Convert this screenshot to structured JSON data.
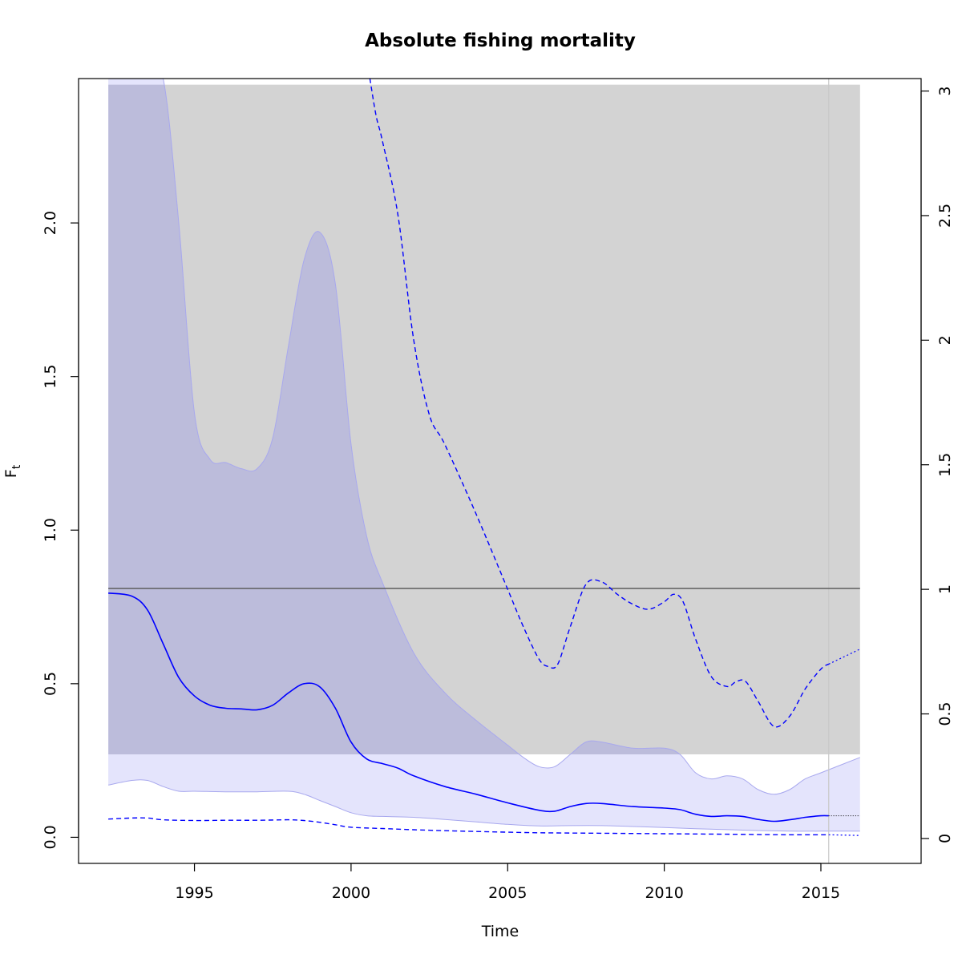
{
  "chart_data": {
    "type": "line",
    "title": "Absolute fishing mortality",
    "xlabel": "Time",
    "ylabel": "F",
    "ylabel_subscript": "t",
    "xlim": [
      1991.3,
      2018.2
    ],
    "ylim": [
      -0.085,
      2.47
    ],
    "ylim_right": [
      -0.1,
      3.05
    ],
    "x_ticks": [
      1995,
      2000,
      2005,
      2010,
      2015
    ],
    "y_ticks": [
      0.0,
      0.5,
      1.0,
      1.5,
      2.0
    ],
    "y_ticks_right": [
      0,
      0.5,
      1,
      1.5,
      2,
      2.5,
      3
    ],
    "grid": false,
    "colors": {
      "estimate": "#0000ff",
      "ci_fill": "#e4e4fc",
      "ci_border": "#a8a8ee",
      "ci_overlap": "#bcbcdb",
      "ref_band": "#d3d3d3",
      "ref_line": "#555555",
      "vline": "#c8c8c8"
    },
    "reference": {
      "fmsy": 0.81,
      "band": [
        0.27,
        2.45
      ],
      "x_range": [
        1992.25,
        2016.25
      ]
    },
    "last_observation": 2015.25,
    "series": [
      {
        "role": "ci_upper",
        "axis": "left",
        "x": [
          1992.25,
          1993.0,
          1993.5,
          1994.0,
          1994.5,
          1995.0,
          1995.5,
          1996.0,
          1996.5,
          1997.0,
          1997.5,
          1998.0,
          1998.5,
          1999.0,
          1999.5,
          2000.0,
          2000.5,
          2001.0,
          2002.0,
          2003.0,
          2004.0,
          2005.0,
          2005.5,
          2006.0,
          2006.5,
          2007.0,
          2007.5,
          2008.0,
          2009.0,
          2010.0,
          2010.5,
          2011.0,
          2011.5,
          2012.0,
          2012.5,
          2013.0,
          2013.5,
          2014.0,
          2014.5,
          2015.0,
          2016.25
        ],
        "y": [
          2.47,
          2.47,
          2.47,
          2.47,
          2.0,
          1.38,
          1.23,
          1.22,
          1.2,
          1.2,
          1.3,
          1.6,
          1.88,
          1.97,
          1.8,
          1.28,
          0.98,
          0.83,
          0.6,
          0.47,
          0.38,
          0.3,
          0.26,
          0.23,
          0.23,
          0.27,
          0.31,
          0.31,
          0.29,
          0.29,
          0.27,
          0.21,
          0.19,
          0.2,
          0.19,
          0.155,
          0.14,
          0.155,
          0.19,
          0.21,
          0.26
        ]
      },
      {
        "role": "ci_lower",
        "axis": "left",
        "x": [
          1992.25,
          1993.0,
          1993.5,
          1994.0,
          1994.5,
          1995.0,
          1996.0,
          1997.0,
          1998.0,
          1998.5,
          1999.0,
          1999.5,
          2000.0,
          2000.5,
          2001.0,
          2002.0,
          2003.0,
          2004.0,
          2005.0,
          2006.0,
          2007.0,
          2008.0,
          2009.0,
          2010.0,
          2011.0,
          2012.0,
          2013.0,
          2014.0,
          2015.0,
          2016.25
        ],
        "y": [
          0.17,
          0.185,
          0.185,
          0.165,
          0.15,
          0.15,
          0.148,
          0.148,
          0.15,
          0.14,
          0.12,
          0.1,
          0.08,
          0.07,
          0.068,
          0.065,
          0.058,
          0.05,
          0.042,
          0.037,
          0.038,
          0.038,
          0.035,
          0.032,
          0.028,
          0.025,
          0.022,
          0.02,
          0.02,
          0.02
        ]
      },
      {
        "role": "estimate",
        "axis": "left",
        "x": [
          1992.25,
          1993.0,
          1993.5,
          1994.0,
          1994.5,
          1995.0,
          1995.5,
          1996.0,
          1996.5,
          1997.0,
          1997.5,
          1998.0,
          1998.5,
          1999.0,
          1999.5,
          2000.0,
          2000.5,
          2001.0,
          2001.5,
          2002.0,
          2003.0,
          2004.0,
          2005.0,
          2006.0,
          2006.5,
          2007.0,
          2007.5,
          2008.0,
          2009.0,
          2010.0,
          2010.5,
          2011.0,
          2011.5,
          2012.0,
          2012.5,
          2013.0,
          2013.5,
          2014.0,
          2014.5,
          2015.0,
          2015.25
        ],
        "y": [
          0.795,
          0.785,
          0.74,
          0.63,
          0.52,
          0.46,
          0.43,
          0.42,
          0.418,
          0.415,
          0.43,
          0.47,
          0.5,
          0.49,
          0.42,
          0.31,
          0.255,
          0.24,
          0.225,
          0.2,
          0.165,
          0.14,
          0.112,
          0.088,
          0.085,
          0.1,
          0.11,
          0.11,
          0.1,
          0.095,
          0.09,
          0.075,
          0.068,
          0.07,
          0.068,
          0.058,
          0.052,
          0.057,
          0.065,
          0.07,
          0.07
        ]
      },
      {
        "role": "estimate_projection",
        "axis": "left",
        "x": [
          2015.25,
          2016.25
        ],
        "y": [
          0.07,
          0.07
        ]
      },
      {
        "role": "relative_upper",
        "axis": "right",
        "x": [
          2000.6,
          2000.8,
          2001.0,
          2001.5,
          2002.0,
          2002.5,
          2003.0,
          2004.0,
          2005.0,
          2005.5,
          2006.0,
          2006.3,
          2006.6,
          2007.0,
          2007.5,
          2008.0,
          2008.5,
          2009.0,
          2009.5,
          2010.0,
          2010.3,
          2010.6,
          2011.0,
          2011.5,
          2012.0,
          2012.3,
          2012.6,
          2013.0,
          2013.5,
          2014.0,
          2014.5,
          2015.0,
          2015.25
        ],
        "y": [
          3.05,
          2.9,
          2.8,
          2.5,
          2.0,
          1.7,
          1.58,
          1.3,
          1.0,
          0.85,
          0.72,
          0.69,
          0.7,
          0.85,
          1.02,
          1.03,
          0.98,
          0.94,
          0.92,
          0.95,
          0.98,
          0.95,
          0.8,
          0.65,
          0.61,
          0.63,
          0.63,
          0.55,
          0.45,
          0.49,
          0.6,
          0.68,
          0.7
        ]
      },
      {
        "role": "relative_upper_projection",
        "axis": "right",
        "x": [
          2015.25,
          2016.25
        ],
        "y": [
          0.7,
          0.76
        ]
      },
      {
        "role": "relative_lower",
        "axis": "right",
        "x": [
          1992.25,
          1993.0,
          1993.5,
          1994.0,
          1995.0,
          1996.0,
          1997.0,
          1998.0,
          1998.5,
          1999.0,
          1999.5,
          2000.0,
          2001.0,
          2002.0,
          2004.0,
          2006.0,
          2008.0,
          2010.0,
          2012.0,
          2014.0,
          2015.25
        ],
        "y": [
          0.078,
          0.082,
          0.082,
          0.075,
          0.072,
          0.073,
          0.073,
          0.075,
          0.072,
          0.065,
          0.055,
          0.045,
          0.04,
          0.035,
          0.028,
          0.023,
          0.021,
          0.019,
          0.017,
          0.015,
          0.015
        ]
      },
      {
        "role": "relative_lower_projection",
        "axis": "right",
        "x": [
          2015.25,
          2016.25
        ],
        "y": [
          0.015,
          0.012
        ]
      }
    ]
  }
}
